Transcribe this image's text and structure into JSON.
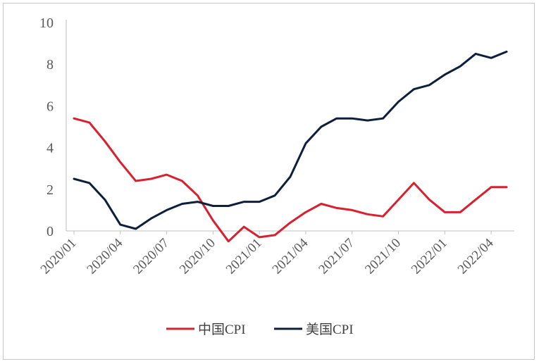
{
  "chart_data": {
    "type": "line",
    "title": "",
    "xlabel": "",
    "ylabel": "",
    "ylim": [
      0,
      10
    ],
    "yticks": [
      "0",
      "2",
      "4",
      "6",
      "8",
      "10"
    ],
    "xtick_labels": [
      "2020/01",
      "2020/04",
      "2020/07",
      "2020/10",
      "2021/01",
      "2021/04",
      "2021/07",
      "2021/10",
      "2022/01",
      "2022/04"
    ],
    "x": [
      "2020/01",
      "2020/02",
      "2020/03",
      "2020/04",
      "2020/05",
      "2020/06",
      "2020/07",
      "2020/08",
      "2020/09",
      "2020/10",
      "2020/11",
      "2020/12",
      "2021/01",
      "2021/02",
      "2021/03",
      "2021/04",
      "2021/05",
      "2021/06",
      "2021/07",
      "2021/08",
      "2021/09",
      "2021/10",
      "2021/11",
      "2021/12",
      "2022/01",
      "2022/02",
      "2022/03",
      "2022/04",
      "2022/05"
    ],
    "series": [
      {
        "name": "中国CPI",
        "color": "#d9202f",
        "values": [
          5.4,
          5.2,
          4.3,
          3.3,
          2.4,
          2.5,
          2.7,
          2.4,
          1.7,
          0.5,
          -0.5,
          0.2,
          -0.3,
          -0.2,
          0.4,
          0.9,
          1.3,
          1.1,
          1.0,
          0.8,
          0.7,
          1.5,
          2.3,
          1.5,
          0.9,
          0.9,
          1.5,
          2.1,
          2.1
        ]
      },
      {
        "name": "美国CPI",
        "color": "#0d1f3c",
        "values": [
          2.5,
          2.3,
          1.5,
          0.3,
          0.1,
          0.6,
          1.0,
          1.3,
          1.4,
          1.2,
          1.2,
          1.4,
          1.4,
          1.7,
          2.6,
          4.2,
          5.0,
          5.4,
          5.4,
          5.3,
          5.4,
          6.2,
          6.8,
          7.0,
          7.5,
          7.9,
          8.5,
          8.3,
          8.6
        ]
      }
    ],
    "grid": false,
    "legend_position": "bottom"
  }
}
